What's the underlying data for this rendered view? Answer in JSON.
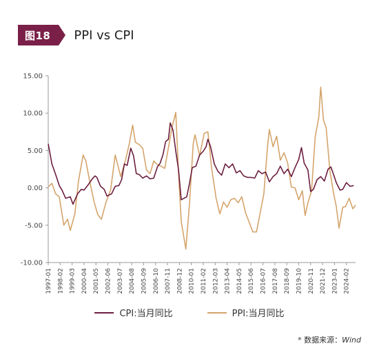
{
  "header": {
    "figure_label": "图18",
    "title": "PPI vs CPI"
  },
  "source": {
    "prefix": "* 数据来源：",
    "name": "Wind"
  },
  "colors": {
    "accent": "#7a2048",
    "cpi": "#6b1d3e",
    "ppi": "#d4a46b",
    "axis": "#999999"
  },
  "chart_data": {
    "type": "line",
    "title": "PPI vs CPI",
    "xlabel": "",
    "ylabel": "",
    "ylim": [
      -10,
      15
    ],
    "xlim": [
      "1997-01",
      "2024-12"
    ],
    "grid": false,
    "legend_position": "bottom-center",
    "y_ticks": [
      "15.00",
      "10.00",
      "5.00",
      "0.00",
      "-5.00",
      "-10.00"
    ],
    "x_ticks": [
      "1997-01",
      "1998-02",
      "1999-03",
      "2000-04",
      "2001-05",
      "2002-06",
      "2003-07",
      "2004-08",
      "2005-09",
      "2006-10",
      "2007-11",
      "2008-12",
      "2010-01",
      "2011-02",
      "2012-03",
      "2013-04",
      "2014-05",
      "2015-06",
      "2016-07",
      "2017-08",
      "2018-09",
      "2019-10",
      "2020-11",
      "2021-12",
      "2023-01",
      "2024-02"
    ],
    "series": [
      {
        "name": "CPI:当月同比",
        "x": [
          "1997-01",
          "1997-05",
          "1997-09",
          "1998-01",
          "1998-04",
          "1998-08",
          "1999-01",
          "1999-04",
          "1999-09",
          "2000-01",
          "2000-04",
          "2000-08",
          "2001-01",
          "2001-04",
          "2001-06",
          "2001-10",
          "2002-02",
          "2002-05",
          "2002-10",
          "2003-02",
          "2003-06",
          "2003-09",
          "2003-12",
          "2004-03",
          "2004-07",
          "2004-10",
          "2005-01",
          "2005-04",
          "2005-08",
          "2005-12",
          "2006-04",
          "2006-08",
          "2006-12",
          "2007-03",
          "2007-06",
          "2007-09",
          "2007-12",
          "2008-02",
          "2008-05",
          "2008-08",
          "2008-11",
          "2009-02",
          "2009-05",
          "2009-08",
          "2009-11",
          "2010-02",
          "2010-06",
          "2010-10",
          "2011-02",
          "2011-05",
          "2011-07",
          "2011-10",
          "2012-02",
          "2012-06",
          "2012-10",
          "2013-02",
          "2013-06",
          "2013-10",
          "2014-02",
          "2014-06",
          "2014-10",
          "2015-02",
          "2015-06",
          "2015-10",
          "2016-02",
          "2016-06",
          "2016-10",
          "2017-02",
          "2017-06",
          "2017-10",
          "2018-02",
          "2018-06",
          "2018-10",
          "2019-02",
          "2019-06",
          "2019-10",
          "2020-01",
          "2020-04",
          "2020-08",
          "2020-11",
          "2021-02",
          "2021-06",
          "2021-10",
          "2022-02",
          "2022-06",
          "2022-09",
          "2022-12",
          "2023-03",
          "2023-07",
          "2023-10",
          "2024-02",
          "2024-06",
          "2024-10"
        ],
        "values": [
          5.9,
          3.2,
          1.8,
          0.3,
          -0.3,
          -1.4,
          -1.2,
          -2.2,
          -0.8,
          -0.2,
          -0.3,
          0.3,
          1.2,
          1.6,
          1.4,
          0.2,
          -0.2,
          -1.1,
          -0.8,
          0.2,
          0.3,
          1.1,
          3.2,
          3.0,
          5.3,
          4.3,
          1.9,
          1.8,
          1.3,
          1.6,
          1.2,
          1.3,
          2.8,
          3.3,
          4.4,
          6.2,
          6.5,
          8.7,
          7.7,
          4.9,
          2.4,
          -1.6,
          -1.4,
          -1.2,
          0.6,
          2.7,
          2.9,
          4.4,
          4.9,
          5.5,
          6.5,
          5.5,
          3.2,
          2.2,
          1.7,
          3.2,
          2.7,
          3.2,
          2.0,
          2.3,
          1.6,
          1.4,
          1.4,
          1.3,
          2.3,
          1.9,
          2.1,
          0.8,
          1.5,
          1.9,
          2.9,
          1.9,
          2.5,
          1.5,
          2.7,
          3.8,
          5.4,
          3.3,
          2.4,
          -0.5,
          -0.2,
          1.1,
          1.5,
          0.9,
          2.5,
          2.8,
          1.8,
          0.7,
          -0.3,
          -0.2,
          0.7,
          0.2,
          0.3
        ]
      },
      {
        "name": "PPI:当月同比",
        "x": [
          "1997-01",
          "1997-05",
          "1997-09",
          "1998-01",
          "1998-06",
          "1998-10",
          "1999-01",
          "1999-06",
          "1999-10",
          "2000-03",
          "2000-06",
          "2000-10",
          "2001-03",
          "2001-07",
          "2001-11",
          "2002-04",
          "2002-09",
          "2003-02",
          "2003-08",
          "2004-01",
          "2004-05",
          "2004-09",
          "2004-12",
          "2005-04",
          "2005-08",
          "2005-12",
          "2006-04",
          "2006-08",
          "2006-12",
          "2007-04",
          "2007-08",
          "2007-12",
          "2008-04",
          "2008-08",
          "2008-11",
          "2009-02",
          "2009-07",
          "2009-11",
          "2010-03",
          "2010-05",
          "2010-10",
          "2011-03",
          "2011-07",
          "2011-11",
          "2012-04",
          "2012-08",
          "2012-12",
          "2013-04",
          "2013-08",
          "2013-12",
          "2014-04",
          "2014-08",
          "2014-12",
          "2015-04",
          "2015-08",
          "2015-12",
          "2016-04",
          "2016-08",
          "2016-12",
          "2017-02",
          "2017-06",
          "2017-10",
          "2018-02",
          "2018-06",
          "2018-10",
          "2019-02",
          "2019-06",
          "2019-10",
          "2020-02",
          "2020-05",
          "2020-08",
          "2020-12",
          "2021-04",
          "2021-08",
          "2021-10",
          "2022-01",
          "2022-04",
          "2022-08",
          "2022-12",
          "2023-03",
          "2023-06",
          "2023-10",
          "2024-01",
          "2024-05",
          "2024-09",
          "2024-12"
        ],
        "values": [
          0.1,
          0.6,
          -0.8,
          -1.2,
          -5.0,
          -4.2,
          -5.7,
          -3.5,
          0.9,
          4.4,
          3.6,
          1.0,
          -1.9,
          -3.6,
          -4.2,
          -1.9,
          -0.3,
          4.4,
          1.5,
          3.6,
          5.7,
          8.4,
          6.1,
          5.8,
          5.3,
          2.4,
          1.9,
          3.6,
          3.1,
          2.9,
          2.6,
          5.4,
          8.1,
          10.1,
          2.0,
          -4.5,
          -8.2,
          -2.1,
          5.9,
          7.1,
          4.3,
          7.3,
          7.5,
          2.7,
          -1.4,
          -3.5,
          -1.9,
          -2.6,
          -1.6,
          -1.4,
          -2.0,
          -1.2,
          -3.3,
          -4.6,
          -5.9,
          -5.9,
          -3.4,
          -0.8,
          5.5,
          7.8,
          5.5,
          6.9,
          3.7,
          4.7,
          3.3,
          0.1,
          0.0,
          -1.6,
          -0.4,
          -3.7,
          -2.0,
          -0.4,
          6.8,
          9.5,
          13.5,
          9.1,
          8.0,
          2.3,
          -0.7,
          -2.5,
          -5.4,
          -2.6,
          -2.5,
          -1.4,
          -2.8,
          -2.3
        ]
      }
    ]
  }
}
